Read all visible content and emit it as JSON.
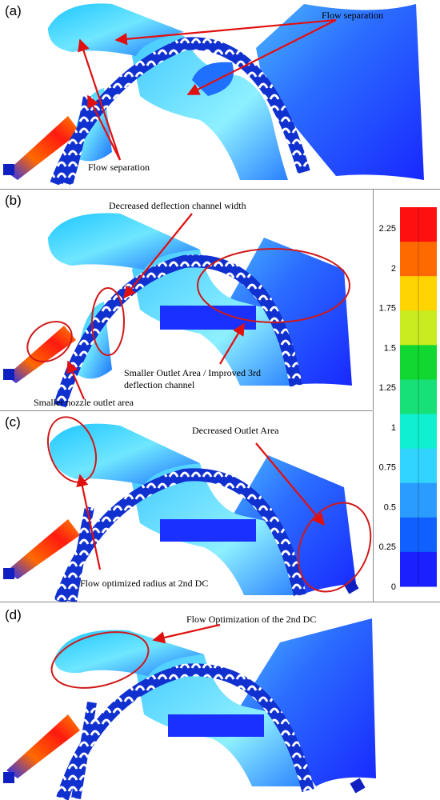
{
  "panels": [
    {
      "label": "(a)",
      "annotations": [
        "Flow separation",
        "Flow separation"
      ]
    },
    {
      "label": "(b)",
      "annotations": [
        "Decreased deflection channel width",
        "Smaller Outlet Area / Improved 3rd deflection channel",
        "Smaller nozzle outlet area"
      ]
    },
    {
      "label": "(c)",
      "annotations": [
        "Decreased Outlet Area",
        "Flow optimized radius at 2nd DC"
      ]
    },
    {
      "label": "(d)",
      "annotations": [
        "Flow Optimization of the 2nd DC"
      ]
    }
  ],
  "colorbar": {
    "ticks": [
      "2.25",
      "2",
      "1.75",
      "1.5",
      "1.25",
      "1",
      "0.75",
      "0.5",
      "0.25",
      "0"
    ],
    "colors": [
      "#ff1010",
      "#ff6a00",
      "#ffd400",
      "#c8ec20",
      "#10d830",
      "#18e078",
      "#10f0d0",
      "#30d4ff",
      "#2a9cff",
      "#1060ff",
      "#1a20ff"
    ]
  },
  "colors": {
    "annotation_arrow": "#e01010",
    "highlight_ellipse": "#d01818",
    "blade": "#ffffff"
  }
}
